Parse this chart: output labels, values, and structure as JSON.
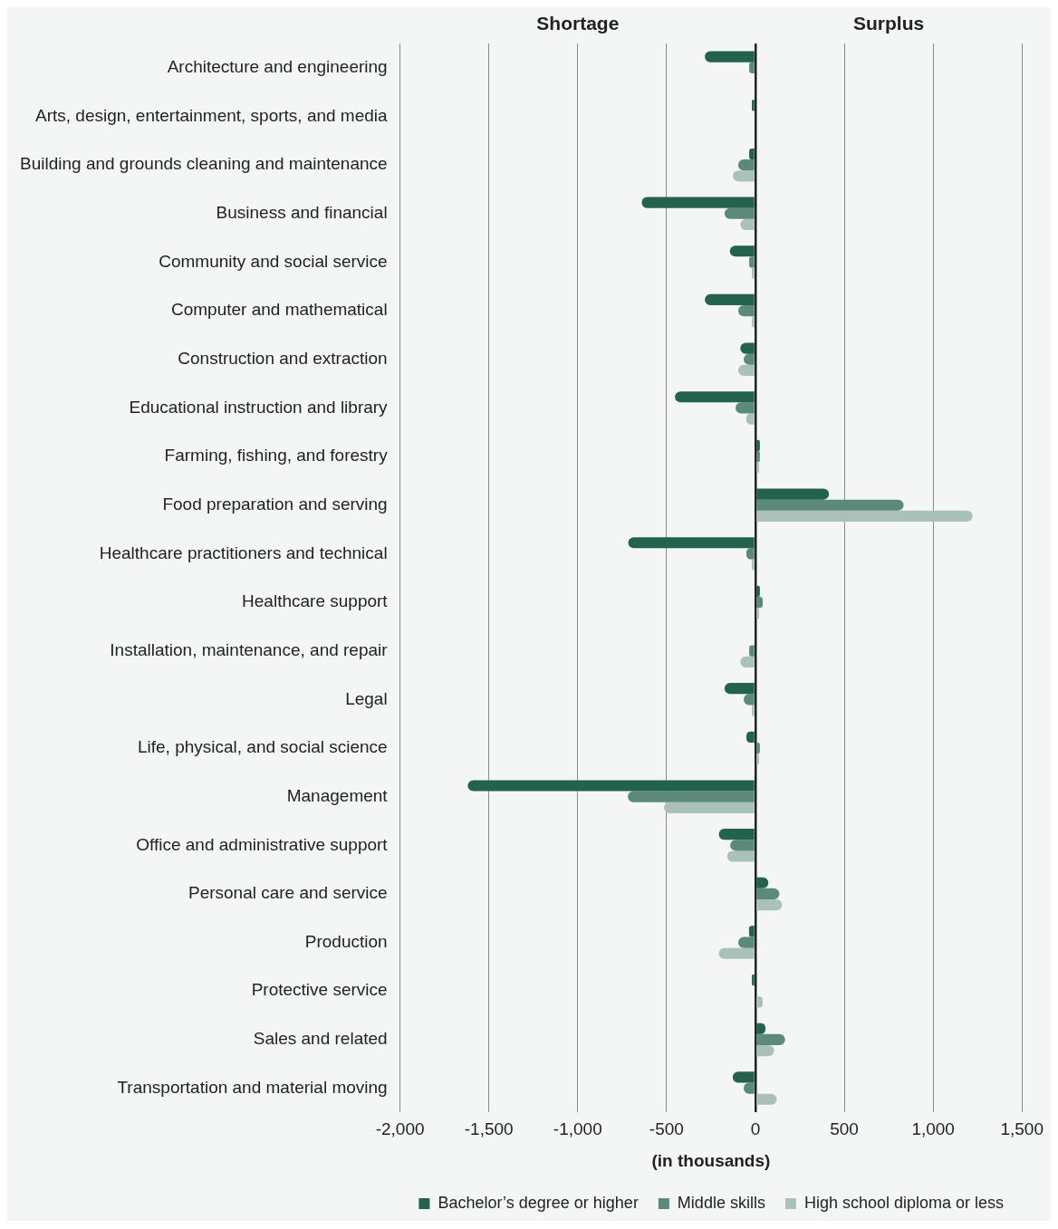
{
  "chart_data": {
    "type": "bar",
    "orientation": "horizontal",
    "xlabel": "(in thousands)",
    "annotations": [
      "Shortage",
      "Surplus"
    ],
    "categories": [
      "Architecture and engineering",
      "Arts, design, entertainment, sports, and media",
      "Building and grounds cleaning and maintenance",
      "Business and financial",
      "Community and social service",
      "Computer and mathematical",
      "Construction and extraction",
      "Educational instruction and library",
      "Farming, fishing, and forestry",
      "Food preparation and serving",
      "Healthcare practitioners and technical",
      "Healthcare support",
      "Installation, maintenance, and repair",
      "Legal",
      "Life, physical, and social science",
      "Management",
      "Office and administrative support",
      "Personal care and service",
      "Production",
      "Protective service",
      "Sales and related",
      "Transportation and material moving"
    ],
    "series": [
      {
        "name": "Bachelor’s degree or higher",
        "color": "#23624f",
        "values": [
          -285,
          -20,
          -35,
          -640,
          -144,
          -285,
          -85,
          -453,
          25,
          414,
          -716,
          25,
          0,
          -174,
          -51,
          -1619,
          -206,
          73,
          -36,
          -20,
          56,
          -128
        ]
      },
      {
        "name": "Middle skills",
        "color": "#5b8a7a",
        "values": [
          -35,
          0,
          -97,
          -174,
          -35,
          -97,
          -66,
          -112,
          25,
          834,
          -51,
          41,
          -35,
          -66,
          25,
          -718,
          -142,
          135,
          -97,
          0,
          167,
          -66
        ]
      },
      {
        "name": "High school diploma or less",
        "color": "#a9c1b9",
        "values": [
          0,
          0,
          -127,
          -85,
          -20,
          -20,
          -97,
          -51,
          20,
          1222,
          -20,
          20,
          -85,
          -20,
          20,
          -515,
          -159,
          150,
          -206,
          41,
          105,
          120
        ]
      }
    ],
    "xlim": [
      -2000,
      1500
    ],
    "xticks": [
      {
        "value": -2000,
        "label": "-2,000"
      },
      {
        "value": -1500,
        "label": "-1,500"
      },
      {
        "value": -1000,
        "label": "-1,000"
      },
      -500,
      0,
      500,
      {
        "value": 1000,
        "label": "1,000"
      },
      {
        "value": 1500,
        "label": "1,500"
      }
    ],
    "grid": "x",
    "legend": "bottom right"
  }
}
